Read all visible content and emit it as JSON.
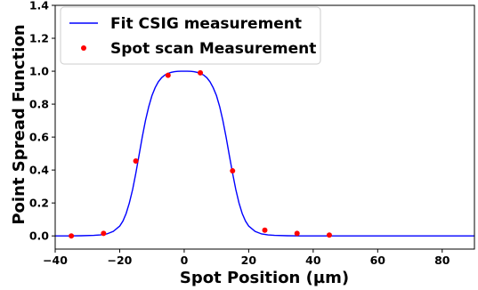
{
  "chart_data": {
    "type": "line",
    "title": "",
    "xlabel": "Spot Position (µm)",
    "ylabel": "Point Spread Function",
    "xlim": [
      -40,
      90
    ],
    "ylim": [
      -0.08,
      1.4
    ],
    "x_ticks": [
      -40,
      -20,
      0,
      20,
      40,
      60,
      80
    ],
    "x_tick_labels": [
      "−40",
      "−20",
      "0",
      "20",
      "40",
      "60",
      "80"
    ],
    "y_ticks": [
      0.0,
      0.2,
      0.4,
      0.6,
      0.8,
      1.0,
      1.2,
      1.4
    ],
    "y_tick_labels": [
      "0.0",
      "0.2",
      "0.4",
      "0.6",
      "0.8",
      "1.0",
      "1.2",
      "1.4"
    ],
    "grid": false,
    "legend_position": "top-left",
    "series": [
      {
        "name": "Fit CSIG measurement",
        "type": "line",
        "color": "#0000ff",
        "x": [
          -40,
          -36,
          -32,
          -28,
          -26,
          -24,
          -22,
          -20,
          -19,
          -18,
          -17,
          -16,
          -15,
          -14,
          -13,
          -12,
          -11,
          -10,
          -9,
          -8,
          -7,
          -6,
          -5,
          -4,
          -3,
          -2,
          -1,
          0,
          1,
          2,
          3,
          4,
          5,
          6,
          7,
          8,
          9,
          10,
          11,
          12,
          13,
          14,
          15,
          16,
          17,
          18,
          19,
          20,
          22,
          24,
          26,
          28,
          32,
          36,
          40,
          50,
          60,
          70,
          80,
          90
        ],
        "y": [
          0.0,
          0.0,
          0.001,
          0.003,
          0.006,
          0.012,
          0.027,
          0.06,
          0.09,
          0.136,
          0.2,
          0.282,
          0.38,
          0.49,
          0.6,
          0.7,
          0.785,
          0.852,
          0.9,
          0.936,
          0.961,
          0.977,
          0.987,
          0.993,
          0.997,
          0.999,
          1.0,
          1.0,
          1.0,
          0.999,
          0.997,
          0.993,
          0.987,
          0.977,
          0.961,
          0.936,
          0.9,
          0.852,
          0.785,
          0.7,
          0.6,
          0.49,
          0.38,
          0.282,
          0.2,
          0.136,
          0.09,
          0.06,
          0.027,
          0.012,
          0.006,
          0.003,
          0.001,
          0.0,
          0.0,
          0.0,
          0.0,
          0.0,
          0.0,
          0.0
        ]
      },
      {
        "name": "Spot scan Measurement",
        "type": "scatter",
        "color": "#ff0000",
        "x": [
          -35,
          -25,
          -15,
          -5,
          5,
          15,
          25,
          35,
          45
        ],
        "y": [
          0.0,
          0.015,
          0.455,
          0.975,
          0.99,
          0.395,
          0.035,
          0.015,
          0.005
        ]
      }
    ]
  }
}
